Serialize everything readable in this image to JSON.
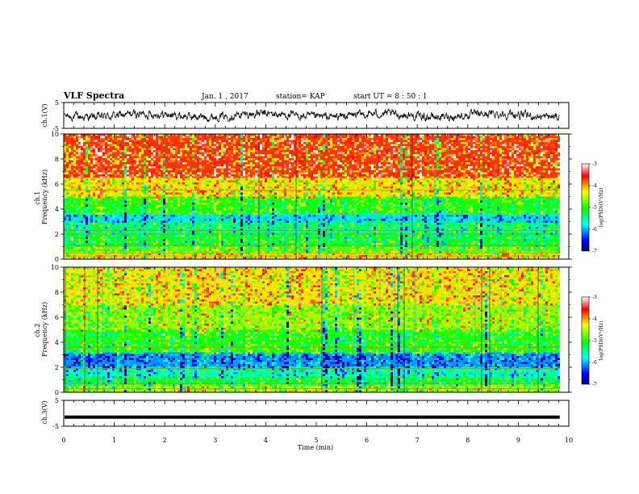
{
  "header": {
    "title": "VLF Spectra",
    "date": "Jan. 1 , 2017",
    "station": "station= KAP",
    "start": "start UT =  8 : 50 : 1"
  },
  "chart_data": [
    {
      "type": "line",
      "panel": "ch1-waveform",
      "ylabel": "ch.1(V)",
      "ylim": [
        -5,
        5
      ],
      "y_ticks": [
        "5",
        "-5"
      ],
      "xlim": [
        0,
        10
      ],
      "x_end": 9.82,
      "style": "noisy waveform, amplitude roughly -2 to 2 V",
      "line_color": "#000000"
    },
    {
      "type": "heatmap",
      "panel": "ch1-spectrogram",
      "ylabel": "ch.1\nFrequency  (kHz)",
      "ylim": [
        0,
        10
      ],
      "y_ticks": [
        "0",
        "2",
        "4",
        "6",
        "8",
        "10"
      ],
      "xlim": [
        0,
        10
      ],
      "x_end": 9.82,
      "colorbar": {
        "label": "log(PSD)(V²/Hz)",
        "range": [
          -7,
          -3
        ],
        "ticks": [
          "-3",
          "-4",
          "-5",
          "-6",
          "-7"
        ]
      },
      "bands_log_psd": [
        {
          "from_khz": 0.0,
          "to_khz": 0.5,
          "level": -4.2
        },
        {
          "from_khz": 0.5,
          "to_khz": 1.0,
          "level": -4.8
        },
        {
          "from_khz": 1.0,
          "to_khz": 2.0,
          "level": -5.2
        },
        {
          "from_khz": 2.0,
          "to_khz": 3.0,
          "level": -5.4
        },
        {
          "from_khz": 3.0,
          "to_khz": 3.6,
          "level": -5.9
        },
        {
          "from_khz": 3.6,
          "to_khz": 5.0,
          "level": -5.0
        },
        {
          "from_khz": 5.0,
          "to_khz": 6.5,
          "level": -4.2
        },
        {
          "from_khz": 6.5,
          "to_khz": 10.0,
          "level": -3.7
        }
      ],
      "line_features_khz": [
        0.25,
        0.45,
        1.1,
        2.0,
        2.3,
        5.5
      ]
    },
    {
      "type": "heatmap",
      "panel": "ch2-spectrogram",
      "ylabel": "ch.2\nFrequency  (kHz)",
      "ylim": [
        0,
        10
      ],
      "y_ticks": [
        "0",
        "2",
        "4",
        "6",
        "8",
        "10"
      ],
      "xlim": [
        0,
        10
      ],
      "x_end": 9.82,
      "colorbar": {
        "label": "log(PSD)(V²/Hz)",
        "range": [
          -7,
          -3
        ],
        "ticks": [
          "-3",
          "-4",
          "-5",
          "-6",
          "-7"
        ]
      },
      "bands_log_psd": [
        {
          "from_khz": 0.0,
          "to_khz": 0.6,
          "level": -4.6
        },
        {
          "from_khz": 0.6,
          "to_khz": 1.2,
          "level": -5.2
        },
        {
          "from_khz": 1.2,
          "to_khz": 2.0,
          "level": -5.6
        },
        {
          "from_khz": 2.0,
          "to_khz": 3.2,
          "level": -6.1
        },
        {
          "from_khz": 3.2,
          "to_khz": 5.0,
          "level": -5.0
        },
        {
          "from_khz": 5.0,
          "to_khz": 7.0,
          "level": -4.6
        },
        {
          "from_khz": 7.0,
          "to_khz": 10.0,
          "level": -4.2
        }
      ],
      "line_features_khz": [
        0.3,
        0.7,
        1.9,
        3.6
      ]
    },
    {
      "type": "line",
      "panel": "ch3-waveform",
      "ylabel": "ch.3(V)",
      "ylim": [
        -5,
        5
      ],
      "y_ticks": [
        "5",
        "-5"
      ],
      "xlim": [
        0,
        10
      ],
      "x_end": 9.82,
      "value": -1.5,
      "line_color": "#000000"
    }
  ],
  "xaxis": {
    "label": "Time  (min)",
    "ticks": [
      "0",
      "1",
      "2",
      "3",
      "4",
      "5",
      "6",
      "7",
      "8",
      "9",
      "10"
    ]
  },
  "colors": {
    "colormap": [
      "#000080",
      "#0000ff",
      "#00ffff",
      "#00ff00",
      "#ffff00",
      "#ff0000",
      "#ffffff"
    ]
  }
}
